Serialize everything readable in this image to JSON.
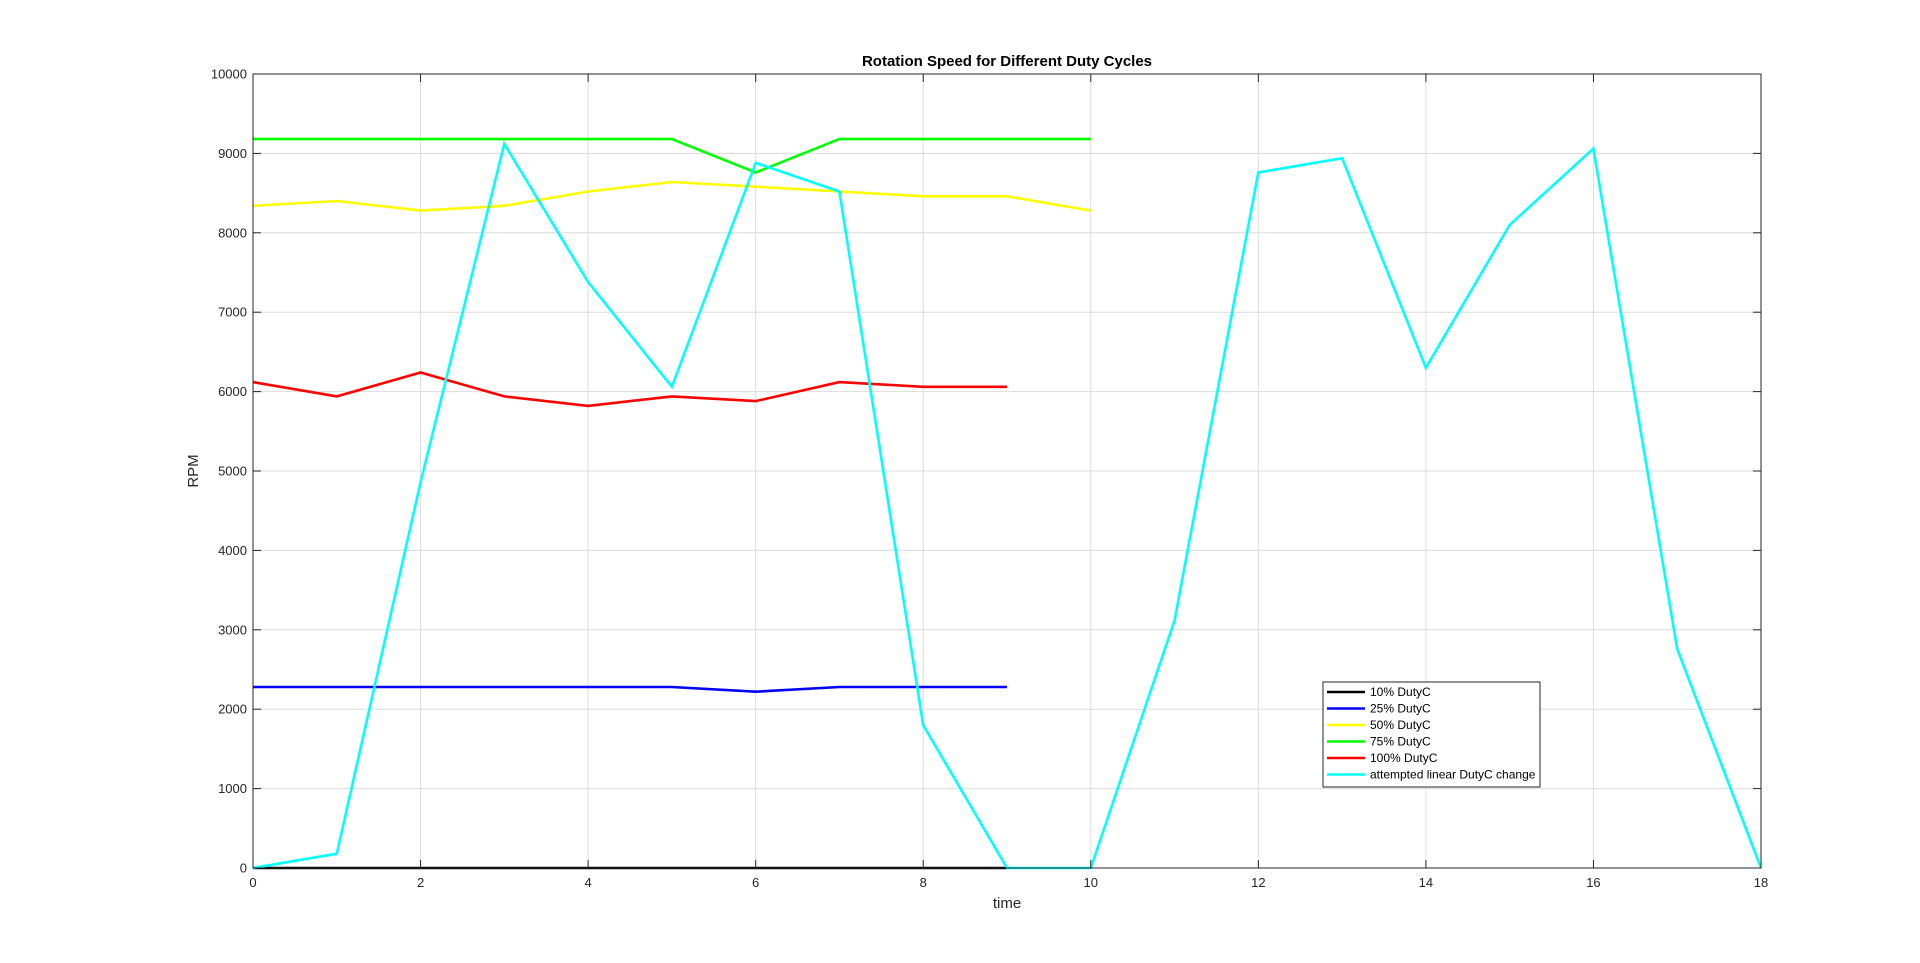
{
  "chart_data": {
    "type": "line",
    "title": "Rotation Speed for Different Duty Cycles",
    "xlabel": "time",
    "ylabel": "RPM",
    "xlim": [
      0,
      18
    ],
    "ylim": [
      0,
      10000
    ],
    "xticks": [
      0,
      2,
      4,
      6,
      8,
      10,
      12,
      14,
      16,
      18
    ],
    "yticks": [
      0,
      1000,
      2000,
      3000,
      4000,
      5000,
      6000,
      7000,
      8000,
      9000,
      10000
    ],
    "grid": true,
    "legend_position": "lower-right",
    "series": [
      {
        "name": "10% DutyC",
        "color": "#000000",
        "x": [
          0,
          1,
          2,
          3,
          4,
          5,
          6,
          7,
          8,
          9
        ],
        "y": [
          0,
          0,
          0,
          0,
          0,
          0,
          0,
          0,
          0,
          0
        ]
      },
      {
        "name": "25% DutyC",
        "color": "#0000ff",
        "x": [
          0,
          1,
          2,
          3,
          4,
          5,
          6,
          7,
          8,
          9
        ],
        "y": [
          2280,
          2280,
          2280,
          2280,
          2280,
          2280,
          2220,
          2280,
          2280,
          2280
        ]
      },
      {
        "name": "50% DutyC",
        "color": "#ffff00",
        "x": [
          0,
          1,
          2,
          3,
          4,
          5,
          6,
          7,
          8,
          9,
          10
        ],
        "y": [
          8340,
          8400,
          8280,
          8340,
          8520,
          8640,
          8580,
          8520,
          8460,
          8460,
          8280
        ]
      },
      {
        "name": "75% DutyC",
        "color": "#00ff00",
        "x": [
          0,
          1,
          2,
          3,
          4,
          5,
          6,
          7,
          8,
          9,
          10
        ],
        "y": [
          9180,
          9180,
          9180,
          9180,
          9180,
          9180,
          8760,
          9180,
          9180,
          9180,
          9180
        ]
      },
      {
        "name": "100% DutyC",
        "color": "#ff0000",
        "x": [
          0,
          1,
          2,
          3,
          4,
          5,
          6,
          7,
          8,
          9
        ],
        "y": [
          6120,
          5940,
          6240,
          5940,
          5820,
          5940,
          5880,
          6120,
          6060,
          6060
        ]
      },
      {
        "name": "attempted linear DutyC change",
        "color": "#00ffff",
        "x": [
          0,
          1,
          2,
          3,
          4,
          5,
          6,
          7,
          8,
          9,
          10,
          11,
          12,
          13,
          14,
          15,
          16,
          17,
          18
        ],
        "y": [
          0,
          180,
          4860,
          9120,
          7380,
          6060,
          8880,
          8520,
          1800,
          0,
          0,
          3120,
          8760,
          8940,
          6300,
          8100,
          9060,
          2760,
          0
        ]
      }
    ]
  }
}
